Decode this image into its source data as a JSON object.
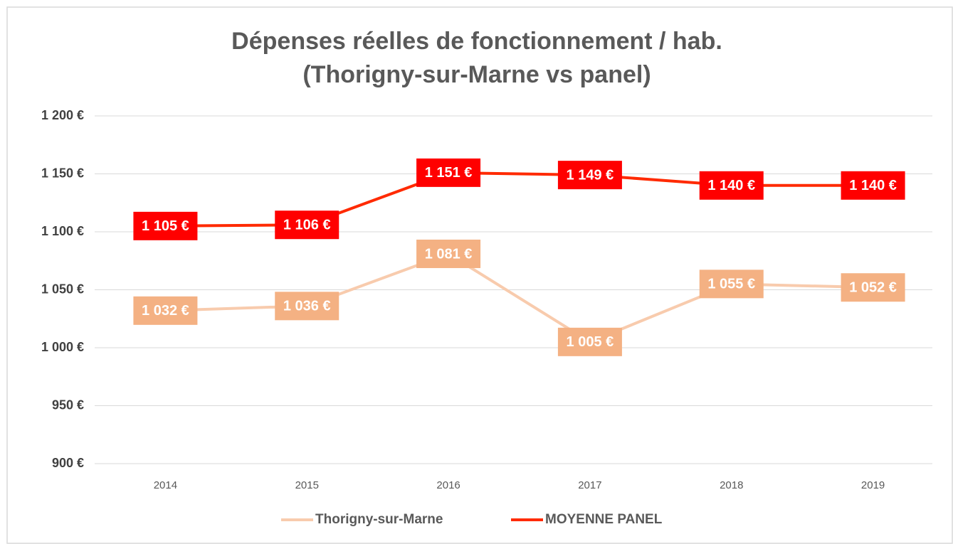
{
  "chart_data": {
    "type": "line",
    "title": "Dépenses réelles de fonctionnement / hab.",
    "subtitle": "(Thorigny-sur-Marne vs panel)",
    "categories": [
      "2014",
      "2015",
      "2016",
      "2017",
      "2018",
      "2019"
    ],
    "series": [
      {
        "name": "Thorigny-sur-Marne",
        "color": "#f4b183",
        "line_color": "#f8cbad",
        "values": [
          1032,
          1036,
          1081,
          1005,
          1055,
          1052
        ],
        "value_labels": [
          "1 032 €",
          "1 036 €",
          "1 081 €",
          "1 005 €",
          "1 055 €",
          "1 052 €"
        ]
      },
      {
        "name": "MOYENNE PANEL",
        "color": "#ff0000",
        "line_color": "#ff2a00",
        "values": [
          1105,
          1106,
          1151,
          1149,
          1140,
          1140
        ],
        "value_labels": [
          "1 105 €",
          "1 106 €",
          "1 151 €",
          "1 149 €",
          "1 140 €",
          "1 140 €"
        ]
      }
    ],
    "ylim": [
      900,
      1200
    ],
    "yticks": [
      {
        "value": 900,
        "label": "900 €"
      },
      {
        "value": 950,
        "label": "950 €"
      },
      {
        "value": 1000,
        "label": "1 000 €"
      },
      {
        "value": 1050,
        "label": "1 050 €"
      },
      {
        "value": 1100,
        "label": "1 100 €"
      },
      {
        "value": 1150,
        "label": "1 150 €"
      },
      {
        "value": 1200,
        "label": "1 200 €"
      }
    ],
    "grid": true,
    "legend": "bottom"
  }
}
